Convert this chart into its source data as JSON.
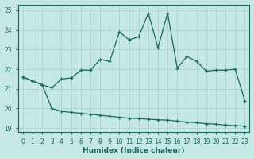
{
  "xlabel": "Humidex (Indice chaleur)",
  "xlim": [
    -0.5,
    23.5
  ],
  "ylim": [
    18.8,
    25.3
  ],
  "yticks": [
    19,
    20,
    21,
    22,
    23,
    24,
    25
  ],
  "xticks": [
    0,
    1,
    2,
    3,
    4,
    5,
    6,
    7,
    8,
    9,
    10,
    11,
    12,
    13,
    14,
    15,
    16,
    17,
    18,
    19,
    20,
    21,
    22,
    23
  ],
  "bg_color": "#c5e8e4",
  "grid_color": "#b0d8d0",
  "line_color": "#1a6860",
  "line1_x": [
    0,
    1,
    2,
    3,
    4,
    5,
    6,
    7,
    8,
    9,
    10,
    11,
    12,
    13,
    14,
    15,
    16,
    17,
    18,
    19,
    20,
    21,
    22,
    23
  ],
  "line1_y": [
    21.6,
    21.4,
    21.2,
    21.05,
    21.5,
    21.55,
    21.95,
    21.95,
    22.5,
    22.4,
    23.9,
    23.5,
    23.65,
    24.85,
    23.1,
    24.85,
    22.05,
    22.65,
    22.4,
    21.9,
    21.95,
    21.95,
    22.0,
    20.4
  ],
  "line2_x": [
    0,
    1,
    2,
    3,
    4,
    5,
    6,
    7,
    8,
    9,
    10,
    11,
    12,
    13,
    14,
    15,
    16,
    17,
    18,
    19,
    20,
    21,
    22,
    23
  ],
  "line2_y": [
    21.6,
    21.4,
    21.2,
    20.0,
    19.85,
    19.8,
    19.75,
    19.7,
    19.65,
    19.6,
    19.55,
    19.5,
    19.48,
    19.45,
    19.42,
    19.4,
    19.35,
    19.3,
    19.27,
    19.22,
    19.2,
    19.15,
    19.12,
    19.1
  ]
}
